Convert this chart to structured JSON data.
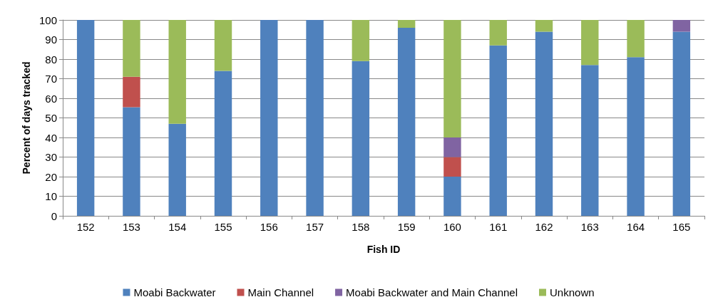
{
  "chart_data": {
    "type": "bar",
    "stacked": true,
    "xlabel": "Fish ID",
    "ylabel": "Percent of days tracked",
    "categories": [
      "152",
      "153",
      "154",
      "155",
      "156",
      "157",
      "158",
      "159",
      "160",
      "161",
      "162",
      "163",
      "164",
      "165"
    ],
    "series": [
      {
        "name": "Moabi Backwater",
        "color": "#4f81bd",
        "values": [
          100,
          55.5,
          47,
          74,
          100,
          100,
          79,
          96,
          20,
          87,
          94,
          77,
          81,
          94
        ]
      },
      {
        "name": "Main Channel",
        "color": "#c0504d",
        "values": [
          0,
          15.5,
          0,
          0,
          0,
          0,
          0,
          0,
          10,
          0,
          0,
          0,
          0,
          0
        ]
      },
      {
        "name": "Moabi Backwater and Main Channel",
        "color": "#8064a2",
        "values": [
          0,
          0,
          0,
          0,
          0,
          0,
          0,
          0,
          10,
          0,
          0,
          0,
          0,
          6
        ]
      },
      {
        "name": "Unknown",
        "color": "#9bbb59",
        "values": [
          0,
          29,
          53,
          26,
          0,
          0,
          21,
          4,
          60,
          13,
          6,
          23,
          19,
          0
        ]
      }
    ],
    "ylim": [
      0,
      100
    ],
    "yticks": [
      0,
      10,
      20,
      30,
      40,
      50,
      60,
      70,
      80,
      90,
      100
    ],
    "grid": "y",
    "legend": "bottom"
  }
}
